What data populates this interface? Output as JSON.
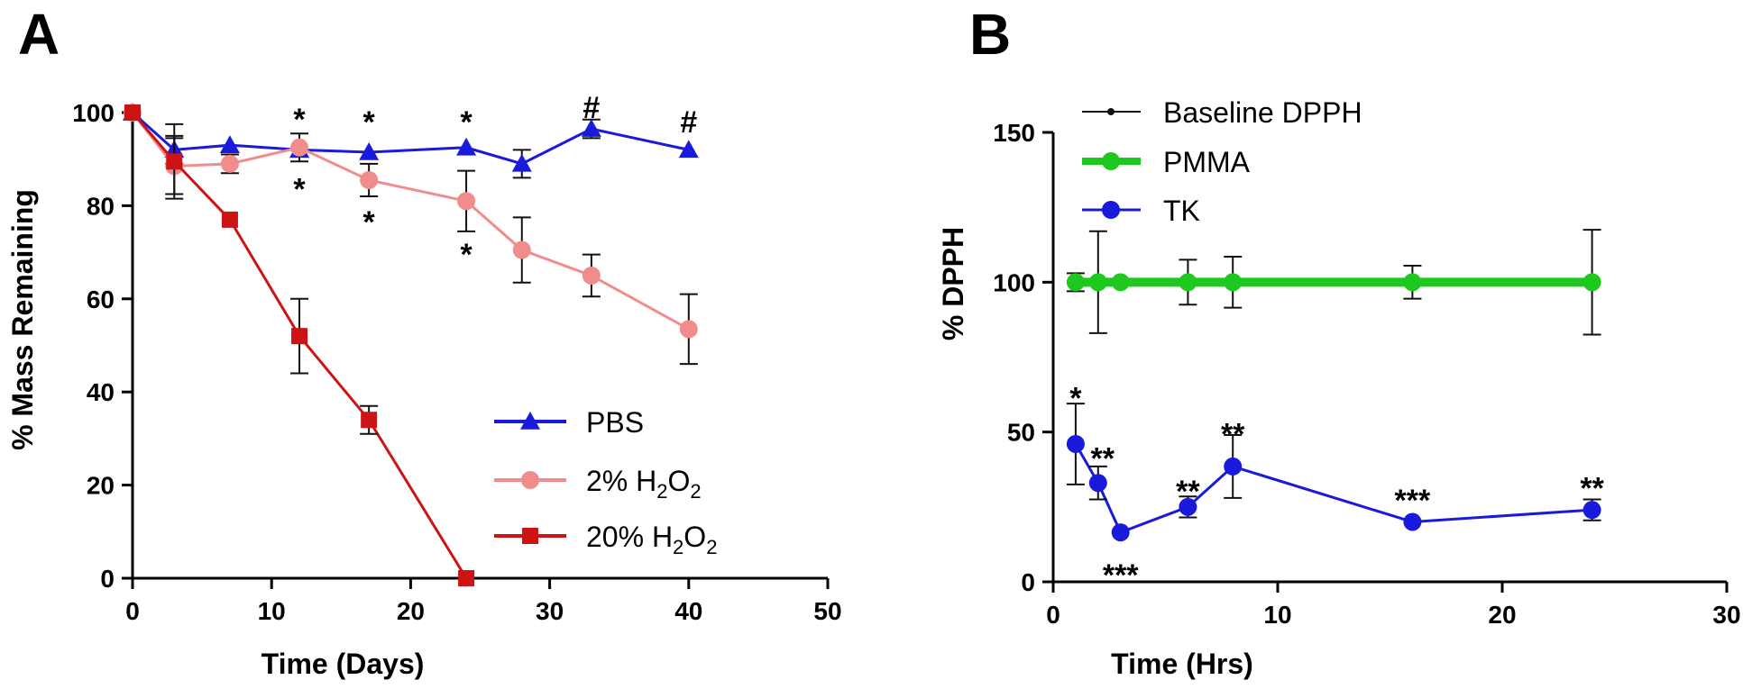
{
  "panels": {
    "a": "A",
    "b": "B"
  },
  "chart_data": [
    {
      "type": "line",
      "panel": "A",
      "xlabel": "Time (Days)",
      "ylabel": "% Mass Remaining",
      "xlim": [
        0,
        50
      ],
      "ylim": [
        0,
        100
      ],
      "xticks": [
        0,
        10,
        20,
        30,
        40,
        50
      ],
      "yticks": [
        0,
        20,
        40,
        60,
        80,
        100
      ],
      "grid": false,
      "legend_position": "bottom-right",
      "series": [
        {
          "name": "PBS",
          "legend_base": "PBS",
          "color": "#1a1adc",
          "marker": "triangle",
          "x": [
            0,
            3,
            7,
            12,
            17,
            24,
            28,
            33,
            40
          ],
          "y": [
            100,
            92,
            93,
            92,
            91.5,
            92.5,
            89,
            96.5,
            92
          ],
          "err": [
            0,
            3,
            0,
            0,
            0,
            0,
            3,
            2,
            0
          ]
        },
        {
          "name": "2% H2O2",
          "legend_base": "2% H",
          "legend_sub1": "2",
          "legend_mid": "O",
          "legend_sub2": "2",
          "color": "#f08c8c",
          "marker": "circle",
          "x": [
            0,
            3,
            7,
            12,
            17,
            24,
            28,
            33,
            40
          ],
          "y": [
            100,
            88.5,
            89,
            92.5,
            85.5,
            81,
            70.5,
            65,
            53.5
          ],
          "err": [
            0,
            6,
            2,
            3,
            3.5,
            6.5,
            7,
            4.5,
            7.5
          ]
        },
        {
          "name": "20% H2O2",
          "legend_base": "20% H",
          "legend_sub1": "2",
          "legend_mid": "O",
          "legend_sub2": "2",
          "color": "#cc1414",
          "marker": "square",
          "x": [
            0,
            3,
            7,
            12,
            17,
            24
          ],
          "y": [
            100,
            89.5,
            77,
            52,
            34,
            0
          ],
          "err": [
            0,
            8,
            0,
            8,
            3,
            0
          ]
        }
      ],
      "annotations": [
        {
          "text": "*",
          "x": 12,
          "y": 99
        },
        {
          "text": "*",
          "x": 12,
          "y": 84
        },
        {
          "text": "*",
          "x": 17,
          "y": 98.5
        },
        {
          "text": "*",
          "x": 17,
          "y": 77
        },
        {
          "text": "*",
          "x": 24,
          "y": 98.5
        },
        {
          "text": "*",
          "x": 24,
          "y": 70
        },
        {
          "text": "#",
          "x": 33,
          "y": 101.5
        },
        {
          "text": "#",
          "x": 40,
          "y": 98.5
        }
      ]
    },
    {
      "type": "line",
      "panel": "B",
      "xlabel": "Time (Hrs)",
      "ylabel": "%  DPPH",
      "xlim": [
        0,
        30
      ],
      "ylim": [
        0,
        150
      ],
      "xticks": [
        0,
        10,
        20,
        30
      ],
      "yticks": [
        0,
        50,
        100,
        150
      ],
      "grid": false,
      "legend_position": "top-left",
      "series": [
        {
          "name": "Baseline DPPH",
          "color": "#111111",
          "marker": "dot",
          "x": [
            1,
            2,
            3,
            6,
            8,
            16,
            24
          ],
          "y": [
            100,
            100,
            100,
            100,
            100,
            100,
            100
          ],
          "err": [
            3,
            17,
            0,
            7.5,
            8.5,
            5.5,
            17.5
          ]
        },
        {
          "name": "PMMA",
          "color": "#1ec81e",
          "marker": "circle",
          "x": [
            1,
            2,
            3,
            6,
            8,
            16,
            24
          ],
          "y": [
            100,
            100,
            100,
            100,
            100,
            100,
            100
          ],
          "err": [
            0,
            0,
            0,
            0,
            0,
            0,
            0
          ]
        },
        {
          "name": "TK",
          "color": "#1a1adc",
          "marker": "circle",
          "x": [
            1,
            2,
            3,
            6,
            8,
            16,
            24
          ],
          "y": [
            46,
            33,
            16.5,
            25,
            38.5,
            20,
            24
          ],
          "err": [
            13.5,
            5.5,
            0,
            3.5,
            10.5,
            0,
            3.5
          ]
        }
      ],
      "annotations": [
        {
          "text": "*",
          "x": 1,
          "y": 62
        },
        {
          "text": "**",
          "x": 2.2,
          "y": 42
        },
        {
          "text": "***",
          "x": 3,
          "y": 3
        },
        {
          "text": "**",
          "x": 6,
          "y": 31
        },
        {
          "text": "**",
          "x": 8,
          "y": 50
        },
        {
          "text": "***",
          "x": 16,
          "y": 28
        },
        {
          "text": "**",
          "x": 24,
          "y": 32
        }
      ]
    }
  ]
}
